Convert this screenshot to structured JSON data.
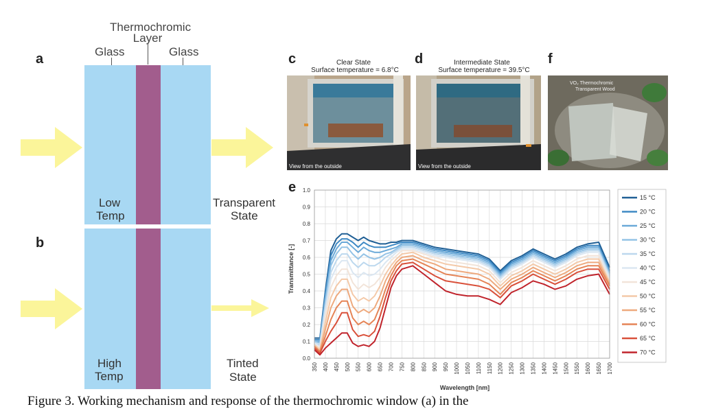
{
  "panels": {
    "a": "a",
    "b": "b",
    "c": "c",
    "d": "d",
    "e": "e",
    "f": "f"
  },
  "diagram": {
    "thermochromic_line1": "Thermochromic",
    "thermochromic_line2": "Layer",
    "glass_left": "Glass",
    "glass_right": "Glass",
    "low_temp_line1": "Low",
    "low_temp_line2": "Temp",
    "high_temp_line1": "High",
    "high_temp_line2": "Temp",
    "transparent_line1": "Transparent",
    "transparent_line2": "State",
    "tinted_line1": "Tinted",
    "tinted_line2": "State",
    "colors": {
      "glass": "#a8d8f3",
      "thermochromic": "#a25d8d",
      "arrow": "#fbf59a"
    }
  },
  "photos": {
    "c_title1": "Clear State",
    "c_title2": "Surface temperature = 6.8°C",
    "d_title1": "Intermediate State",
    "d_title2": "Surface temperature = 39.5°C",
    "c_caption": "View from the outside",
    "d_caption": "View from the outside",
    "f_label1": "VO₂ Thermochromic",
    "f_label2": "Transparent Wood"
  },
  "caption": {
    "text": "Figure 3. Working mechanism and response of the thermochromic window (a) in the"
  },
  "chart_data": {
    "type": "line",
    "title": "",
    "xlabel": "Wavelength [nm]",
    "ylabel": "Transmittance [-]",
    "xlim": [
      350,
      1700
    ],
    "ylim": [
      0,
      1.0
    ],
    "xticks": [
      350,
      400,
      450,
      500,
      550,
      600,
      650,
      700,
      750,
      800,
      850,
      900,
      950,
      1000,
      1050,
      1100,
      1150,
      1200,
      1250,
      1300,
      1350,
      1400,
      1450,
      1500,
      1550,
      1600,
      1650,
      1700
    ],
    "yticks": [
      0.0,
      0.1,
      0.2,
      0.3,
      0.4,
      0.5,
      0.6,
      0.7,
      0.8,
      0.9,
      1.0
    ],
    "grid": true,
    "legend_position": "right",
    "x": [
      350,
      375,
      400,
      425,
      450,
      475,
      500,
      525,
      550,
      575,
      600,
      625,
      650,
      675,
      700,
      725,
      750,
      800,
      850,
      900,
      950,
      1000,
      1050,
      1100,
      1150,
      1200,
      1250,
      1300,
      1350,
      1400,
      1450,
      1500,
      1550,
      1600,
      1650,
      1700
    ],
    "series": [
      {
        "name": "15 °C",
        "color": "#1f5f95",
        "values": [
          0.12,
          0.12,
          0.4,
          0.64,
          0.71,
          0.74,
          0.74,
          0.72,
          0.7,
          0.72,
          0.7,
          0.69,
          0.68,
          0.68,
          0.69,
          0.69,
          0.7,
          0.7,
          0.68,
          0.66,
          0.65,
          0.64,
          0.63,
          0.62,
          0.59,
          0.52,
          0.58,
          0.61,
          0.65,
          0.62,
          0.59,
          0.62,
          0.66,
          0.68,
          0.69,
          0.54
        ]
      },
      {
        "name": "20 °C",
        "color": "#3e89c4",
        "values": [
          0.11,
          0.11,
          0.38,
          0.61,
          0.68,
          0.71,
          0.71,
          0.69,
          0.66,
          0.69,
          0.67,
          0.66,
          0.66,
          0.66,
          0.67,
          0.68,
          0.69,
          0.69,
          0.67,
          0.65,
          0.64,
          0.63,
          0.62,
          0.61,
          0.58,
          0.51,
          0.57,
          0.6,
          0.64,
          0.61,
          0.58,
          0.61,
          0.65,
          0.67,
          0.67,
          0.52
        ]
      },
      {
        "name": "25 °C",
        "color": "#6aa9d8",
        "values": [
          0.1,
          0.1,
          0.36,
          0.58,
          0.65,
          0.69,
          0.69,
          0.66,
          0.63,
          0.66,
          0.64,
          0.63,
          0.63,
          0.64,
          0.65,
          0.66,
          0.68,
          0.68,
          0.66,
          0.64,
          0.63,
          0.62,
          0.61,
          0.6,
          0.57,
          0.5,
          0.56,
          0.59,
          0.63,
          0.6,
          0.57,
          0.6,
          0.64,
          0.66,
          0.66,
          0.51
        ]
      },
      {
        "name": "30 °C",
        "color": "#94c3e6",
        "values": [
          0.1,
          0.09,
          0.33,
          0.55,
          0.62,
          0.66,
          0.66,
          0.62,
          0.59,
          0.62,
          0.6,
          0.59,
          0.6,
          0.62,
          0.63,
          0.65,
          0.67,
          0.67,
          0.65,
          0.63,
          0.62,
          0.61,
          0.6,
          0.59,
          0.56,
          0.49,
          0.55,
          0.58,
          0.62,
          0.59,
          0.56,
          0.59,
          0.63,
          0.65,
          0.65,
          0.5
        ]
      },
      {
        "name": "35 °C",
        "color": "#bcd8ee",
        "values": [
          0.09,
          0.08,
          0.31,
          0.51,
          0.58,
          0.62,
          0.62,
          0.57,
          0.54,
          0.57,
          0.55,
          0.55,
          0.57,
          0.6,
          0.62,
          0.64,
          0.66,
          0.66,
          0.64,
          0.62,
          0.61,
          0.6,
          0.59,
          0.58,
          0.55,
          0.48,
          0.54,
          0.57,
          0.61,
          0.58,
          0.55,
          0.58,
          0.62,
          0.64,
          0.64,
          0.49
        ]
      },
      {
        "name": "40 °C",
        "color": "#dbe7f2",
        "values": [
          0.09,
          0.07,
          0.28,
          0.47,
          0.54,
          0.58,
          0.58,
          0.51,
          0.48,
          0.51,
          0.49,
          0.5,
          0.53,
          0.57,
          0.6,
          0.63,
          0.65,
          0.65,
          0.63,
          0.61,
          0.6,
          0.59,
          0.58,
          0.57,
          0.54,
          0.47,
          0.53,
          0.56,
          0.6,
          0.57,
          0.54,
          0.57,
          0.61,
          0.63,
          0.63,
          0.48
        ]
      },
      {
        "name": "45 °C",
        "color": "#f2e4d9",
        "values": [
          0.08,
          0.06,
          0.25,
          0.42,
          0.49,
          0.53,
          0.53,
          0.45,
          0.41,
          0.44,
          0.42,
          0.44,
          0.48,
          0.54,
          0.58,
          0.61,
          0.64,
          0.64,
          0.62,
          0.6,
          0.58,
          0.57,
          0.56,
          0.55,
          0.52,
          0.45,
          0.51,
          0.54,
          0.58,
          0.55,
          0.52,
          0.55,
          0.59,
          0.61,
          0.61,
          0.46
        ]
      },
      {
        "name": "50 °C",
        "color": "#f4c9a8",
        "values": [
          0.08,
          0.05,
          0.21,
          0.36,
          0.43,
          0.47,
          0.47,
          0.38,
          0.34,
          0.36,
          0.34,
          0.37,
          0.43,
          0.5,
          0.55,
          0.59,
          0.62,
          0.63,
          0.6,
          0.58,
          0.56,
          0.55,
          0.54,
          0.53,
          0.5,
          0.43,
          0.49,
          0.52,
          0.56,
          0.53,
          0.5,
          0.53,
          0.57,
          0.59,
          0.59,
          0.45
        ]
      },
      {
        "name": "55 °C",
        "color": "#eea97d",
        "values": [
          0.07,
          0.04,
          0.17,
          0.3,
          0.37,
          0.41,
          0.41,
          0.31,
          0.27,
          0.29,
          0.27,
          0.3,
          0.37,
          0.46,
          0.52,
          0.57,
          0.6,
          0.61,
          0.58,
          0.56,
          0.53,
          0.52,
          0.51,
          0.5,
          0.47,
          0.41,
          0.47,
          0.5,
          0.54,
          0.51,
          0.48,
          0.51,
          0.55,
          0.57,
          0.57,
          0.44
        ]
      },
      {
        "name": "60 °C",
        "color": "#e58456",
        "values": [
          0.07,
          0.04,
          0.13,
          0.23,
          0.3,
          0.34,
          0.34,
          0.24,
          0.2,
          0.22,
          0.2,
          0.23,
          0.31,
          0.41,
          0.49,
          0.55,
          0.58,
          0.59,
          0.56,
          0.53,
          0.5,
          0.49,
          0.48,
          0.47,
          0.44,
          0.38,
          0.45,
          0.48,
          0.52,
          0.49,
          0.46,
          0.49,
          0.53,
          0.55,
          0.55,
          0.43
        ]
      },
      {
        "name": "65 °C",
        "color": "#d9503a",
        "values": [
          0.06,
          0.03,
          0.1,
          0.16,
          0.21,
          0.27,
          0.27,
          0.17,
          0.13,
          0.14,
          0.13,
          0.16,
          0.25,
          0.36,
          0.46,
          0.52,
          0.56,
          0.57,
          0.53,
          0.49,
          0.46,
          0.45,
          0.44,
          0.43,
          0.41,
          0.36,
          0.43,
          0.46,
          0.5,
          0.47,
          0.44,
          0.47,
          0.51,
          0.53,
          0.53,
          0.41
        ]
      },
      {
        "name": "70 °C",
        "color": "#c0232b",
        "values": [
          0.05,
          0.02,
          0.06,
          0.09,
          0.12,
          0.15,
          0.15,
          0.09,
          0.07,
          0.08,
          0.07,
          0.1,
          0.18,
          0.3,
          0.42,
          0.49,
          0.53,
          0.55,
          0.5,
          0.45,
          0.4,
          0.38,
          0.37,
          0.37,
          0.35,
          0.32,
          0.39,
          0.42,
          0.46,
          0.44,
          0.41,
          0.43,
          0.47,
          0.49,
          0.5,
          0.38
        ]
      }
    ]
  }
}
